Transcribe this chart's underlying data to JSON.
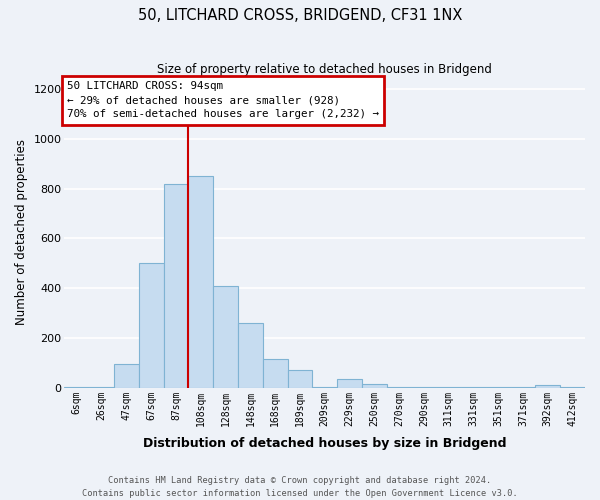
{
  "title": "50, LITCHARD CROSS, BRIDGEND, CF31 1NX",
  "subtitle": "Size of property relative to detached houses in Bridgend",
  "xlabel": "Distribution of detached houses by size in Bridgend",
  "ylabel": "Number of detached properties",
  "categories": [
    "6sqm",
    "26sqm",
    "47sqm",
    "67sqm",
    "87sqm",
    "108sqm",
    "128sqm",
    "148sqm",
    "168sqm",
    "189sqm",
    "209sqm",
    "229sqm",
    "250sqm",
    "270sqm",
    "290sqm",
    "311sqm",
    "331sqm",
    "351sqm",
    "371sqm",
    "392sqm",
    "412sqm"
  ],
  "values": [
    5,
    5,
    95,
    500,
    820,
    850,
    410,
    260,
    115,
    70,
    5,
    35,
    15,
    5,
    5,
    5,
    5,
    5,
    5,
    10,
    5
  ],
  "bar_color": "#c6dcf0",
  "bar_edge_color": "#7fb3d3",
  "background_color": "#eef2f8",
  "grid_color": "#ffffff",
  "vline_color": "#cc0000",
  "vline_pos": 4.5,
  "annotation_text": "50 LITCHARD CROSS: 94sqm\n← 29% of detached houses are smaller (928)\n70% of semi-detached houses are larger (2,232) →",
  "annotation_box_edgecolor": "#cc0000",
  "ylim": [
    0,
    1250
  ],
  "yticks": [
    0,
    200,
    400,
    600,
    800,
    1000,
    1200
  ],
  "footer_line1": "Contains HM Land Registry data © Crown copyright and database right 2024.",
  "footer_line2": "Contains public sector information licensed under the Open Government Licence v3.0."
}
